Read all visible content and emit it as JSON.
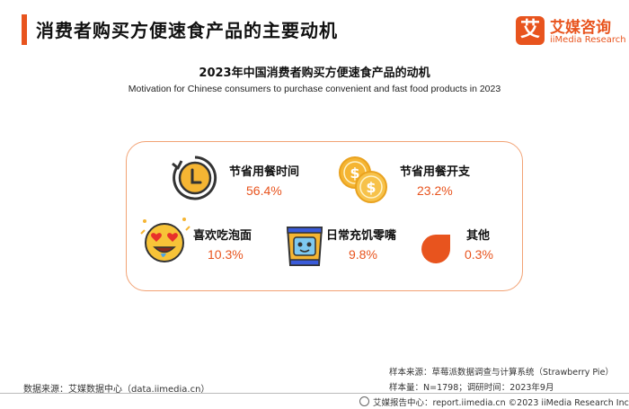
{
  "header": {
    "title": "消费者购买方便速食产品的主要动机",
    "logo_mark": "艾",
    "logo_cn": "艾媒咨询",
    "logo_en": "iiMedia Research"
  },
  "chart_data": {
    "type": "table",
    "title": "2023年中国消费者购买方便速食产品的动机",
    "subtitle": "Motivation for Chinese consumers to purchase convenient and fast food products in 2023",
    "unit": "%",
    "items": [
      {
        "label": "节省用餐时间",
        "value": 56.4,
        "display": "56.4%",
        "icon": "clock-icon"
      },
      {
        "label": "节省用餐开支",
        "value": 23.2,
        "display": "23.2%",
        "icon": "coins-icon"
      },
      {
        "label": "喜欢吃泡面",
        "value": 10.3,
        "display": "10.3%",
        "icon": "heart-eyes-emoji-icon"
      },
      {
        "label": "日常充饥零嘴",
        "value": 9.8,
        "display": "9.8%",
        "icon": "snack-bag-icon"
      },
      {
        "label": "其他",
        "value": 0.3,
        "display": "0.3%",
        "icon": "orange-leaf-icon"
      }
    ]
  },
  "footer": {
    "source_left": "数据来源：艾媒数据中心（data.iimedia.cn）",
    "sample_source": "样本来源：草莓派数据调查与计算系统（Strawberry Pie）",
    "sample_size": "样本量：N=1798；调研时间：2023年9月",
    "report": "艾媒报告中心：report.iimedia.cn  ©2023  iiMedia Research  Inc"
  },
  "colors": {
    "accent": "#e8541e",
    "panel_border": "#f2a274"
  }
}
